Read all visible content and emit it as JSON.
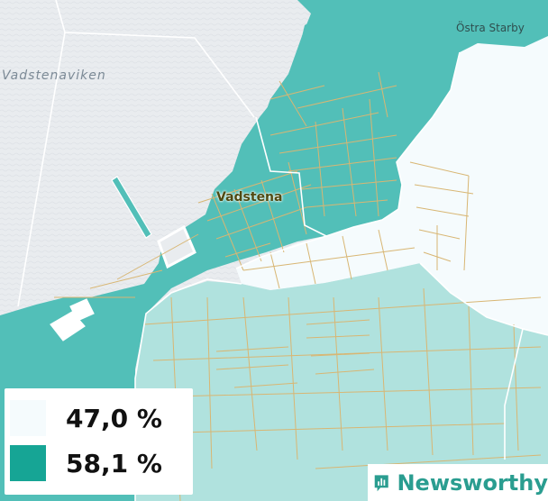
{
  "map": {
    "labels": {
      "lake": "Vadstenaviken",
      "town": "Vadstena",
      "village": "Östra Starby"
    },
    "colors": {
      "water": "#e9ecef",
      "region_low": "#f5fbfd",
      "region_mid": "#b0e2de",
      "region_high": "#52bfb8",
      "roads": "#d8b673",
      "borders": "#ffffff"
    }
  },
  "legend": {
    "items": [
      {
        "label": "47,0 %",
        "color": "#f5fbfd"
      },
      {
        "label": "58,1 %",
        "color": "#16a595"
      }
    ]
  },
  "brand": {
    "name": "Newsworthy",
    "icon": "newsworthy-logo-icon",
    "color": "#2a9d90"
  }
}
